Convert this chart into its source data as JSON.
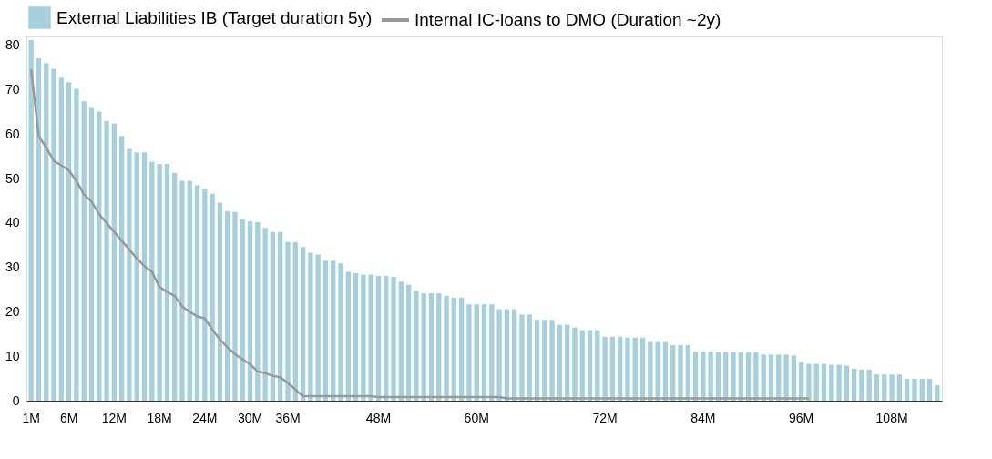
{
  "chart_data": {
    "type": "bar",
    "categories": [
      "1M",
      null,
      null,
      null,
      null,
      "6M",
      null,
      null,
      null,
      null,
      null,
      "12M",
      null,
      null,
      null,
      null,
      null,
      "18M",
      null,
      null,
      null,
      null,
      null,
      "24M",
      null,
      null,
      null,
      null,
      null,
      "30M",
      null,
      null,
      null,
      null,
      "36M",
      null,
      null,
      null,
      null,
      null,
      null,
      null,
      null,
      null,
      null,
      null,
      "48M",
      null,
      null,
      null,
      null,
      null,
      null,
      null,
      null,
      null,
      null,
      null,
      null,
      "60M",
      null,
      null,
      null,
      null,
      null,
      null,
      null,
      null,
      null,
      null,
      null,
      null,
      null,
      null,
      null,
      null,
      "72M",
      null,
      null,
      null,
      null,
      null,
      null,
      null,
      null,
      null,
      null,
      null,
      null,
      "84M",
      null,
      null,
      null,
      null,
      null,
      null,
      null,
      null,
      null,
      null,
      null,
      null,
      "96M",
      null,
      null,
      null,
      null,
      null,
      null,
      null,
      null,
      null,
      null,
      null,
      "108M",
      null,
      null,
      null,
      null,
      null,
      null
    ],
    "series": [
      {
        "name": "External Liabilities IB (Target duration 5y)",
        "color": "#a8cfdc",
        "values": [
          81.2,
          77.1,
          76,
          74.7,
          72.7,
          71.7,
          70.2,
          67.4,
          65.9,
          65.1,
          63,
          62.4,
          59.6,
          56.7,
          55.9,
          55.9,
          53.8,
          53.3,
          53.3,
          51.3,
          49.5,
          49.5,
          48.5,
          47.6,
          46.6,
          44.6,
          42.7,
          42.5,
          40.8,
          40.4,
          40.2,
          38.9,
          38,
          38,
          35.7,
          35.7,
          34.6,
          33.3,
          32.9,
          31.5,
          31.5,
          30.9,
          29,
          28.7,
          28.4,
          28.4,
          28.1,
          28.1,
          27.9,
          26.8,
          26.1,
          24.7,
          24.2,
          24.2,
          24.2,
          23.6,
          23.2,
          23.2,
          21.7,
          21.7,
          21.7,
          21.7,
          20.6,
          20.6,
          20.6,
          19.4,
          19.4,
          18.2,
          18.2,
          18.2,
          17.1,
          17.1,
          16.5,
          15.9,
          15.9,
          15.9,
          14.4,
          14.4,
          14.4,
          14.2,
          14.2,
          14.2,
          13.4,
          13.4,
          13.4,
          12.5,
          12.5,
          12.5,
          11.1,
          11.1,
          11.1,
          10.9,
          10.9,
          10.9,
          10.9,
          10.9,
          10.9,
          10.4,
          10.4,
          10.4,
          10.4,
          10.2,
          8.7,
          8.3,
          8.3,
          8.3,
          8.1,
          8.1,
          7.9,
          7.2,
          7.0,
          7.0,
          5.9,
          5.9,
          5.9,
          5.9,
          4.9,
          4.9,
          4.9,
          4.9,
          3.5
        ]
      },
      {
        "name": "Internal IC-loans to DMO (Duration ~2y)",
        "type": "line",
        "color": "#999999",
        "values": [
          74.6,
          59.6,
          57,
          54,
          53,
          51.8,
          49.5,
          46.4,
          44.8,
          42,
          40,
          38,
          36,
          34,
          32,
          30.3,
          29,
          25.6,
          24.5,
          23.6,
          21.2,
          20,
          19,
          18.5,
          16,
          13.8,
          12,
          10.5,
          9.3,
          8.2,
          6.6,
          6.2,
          5.6,
          5.3,
          4,
          2.5,
          1.0,
          1.0,
          1.0,
          1.0,
          1.0,
          1.0,
          1.0,
          1.0,
          1.0,
          1.0,
          0.8,
          0.8,
          0.8,
          0.8,
          0.8,
          0.8,
          0.8,
          0.8,
          0.8,
          0.8,
          0.8,
          0.8,
          0.8,
          0.8,
          0.8,
          0.8,
          0.8,
          0.5,
          0.5,
          0.5,
          0.5,
          0.5,
          0.5,
          0.5,
          0.5,
          0.5,
          0.5,
          0.5,
          0.5,
          0.5,
          0.5,
          0.5,
          0.5,
          0.5,
          0.5,
          0.5,
          0.5,
          0.5,
          0.5,
          0.5,
          0.5,
          0.5,
          0.5,
          0.5,
          0.5,
          0.5,
          0.5,
          0.5,
          0.5,
          0.5,
          0.5,
          0.5,
          0.5,
          0.5,
          0.5,
          0.5,
          0.5,
          0.5,
          null,
          null,
          null,
          null,
          null,
          null,
          null,
          null,
          null,
          null,
          null,
          null,
          null,
          null,
          null,
          null,
          null
        ]
      }
    ],
    "ylim": [
      0,
      82
    ],
    "yticks": [
      0,
      10,
      20,
      30,
      40,
      50,
      60,
      70,
      80
    ],
    "legend": "top"
  }
}
